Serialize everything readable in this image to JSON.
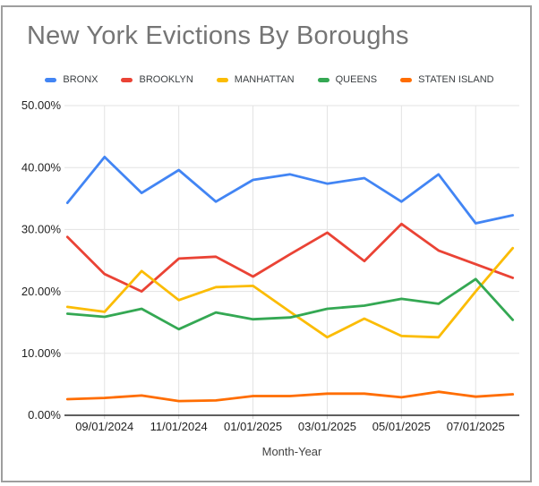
{
  "window": {
    "background": "#ffffff",
    "frame_border_color": "#9e9e9e"
  },
  "colors": {
    "title_text": "#757575",
    "legend_text": "#3c4043",
    "axis_label_text": "#1f1f1f",
    "axis_title_text": "#424242",
    "gridline": "#e3e3e3",
    "axis_line": "#2a2a2a",
    "tick_mark": "#d0d0d0"
  },
  "chart_data": {
    "type": "line",
    "title": "New York Evictions By Boroughs",
    "xlabel": "Month-Year",
    "ylabel": "",
    "ylim": [
      0,
      50
    ],
    "grid": true,
    "legend_position": "top",
    "x": [
      "08/01/2024",
      "09/01/2024",
      "10/01/2024",
      "11/01/2024",
      "12/01/2024",
      "01/01/2025",
      "02/01/2025",
      "03/01/2025",
      "04/01/2025",
      "05/01/2025",
      "06/01/2025",
      "07/01/2025",
      "08/01/2025"
    ],
    "x_tick_labels": [
      "09/01/2024",
      "11/01/2024",
      "01/01/2025",
      "03/01/2025",
      "05/01/2025",
      "07/01/2025"
    ],
    "y_tick_labels": [
      "0.00%",
      "10.00%",
      "20.00%",
      "30.00%",
      "40.00%",
      "50.00%"
    ],
    "series": [
      {
        "name": "BRONX",
        "color": "#4285F4",
        "values": [
          34.3,
          41.7,
          35.9,
          39.6,
          34.5,
          38.0,
          38.9,
          37.4,
          38.3,
          34.5,
          38.9,
          31.0,
          32.3
        ]
      },
      {
        "name": "BROOKLYN",
        "color": "#EA4335",
        "values": [
          28.8,
          22.8,
          20.0,
          25.3,
          25.6,
          22.4,
          26.0,
          29.5,
          24.9,
          30.9,
          26.6,
          24.4,
          22.2
        ]
      },
      {
        "name": "MANHATTAN",
        "color": "#FBBC04",
        "values": [
          17.5,
          16.7,
          23.3,
          18.6,
          20.7,
          20.9,
          16.7,
          12.6,
          15.6,
          12.8,
          12.6,
          20.0,
          27.0
        ]
      },
      {
        "name": "QUEENS",
        "color": "#34A853",
        "values": [
          16.4,
          15.9,
          17.2,
          13.9,
          16.6,
          15.5,
          15.8,
          17.2,
          17.7,
          18.8,
          18.0,
          22.0,
          15.4
        ]
      },
      {
        "name": "STATEN ISLAND",
        "color": "#FF6D01",
        "values": [
          2.6,
          2.8,
          3.2,
          2.3,
          2.4,
          3.1,
          3.1,
          3.5,
          3.5,
          2.9,
          3.8,
          3.0,
          3.4
        ]
      }
    ]
  }
}
